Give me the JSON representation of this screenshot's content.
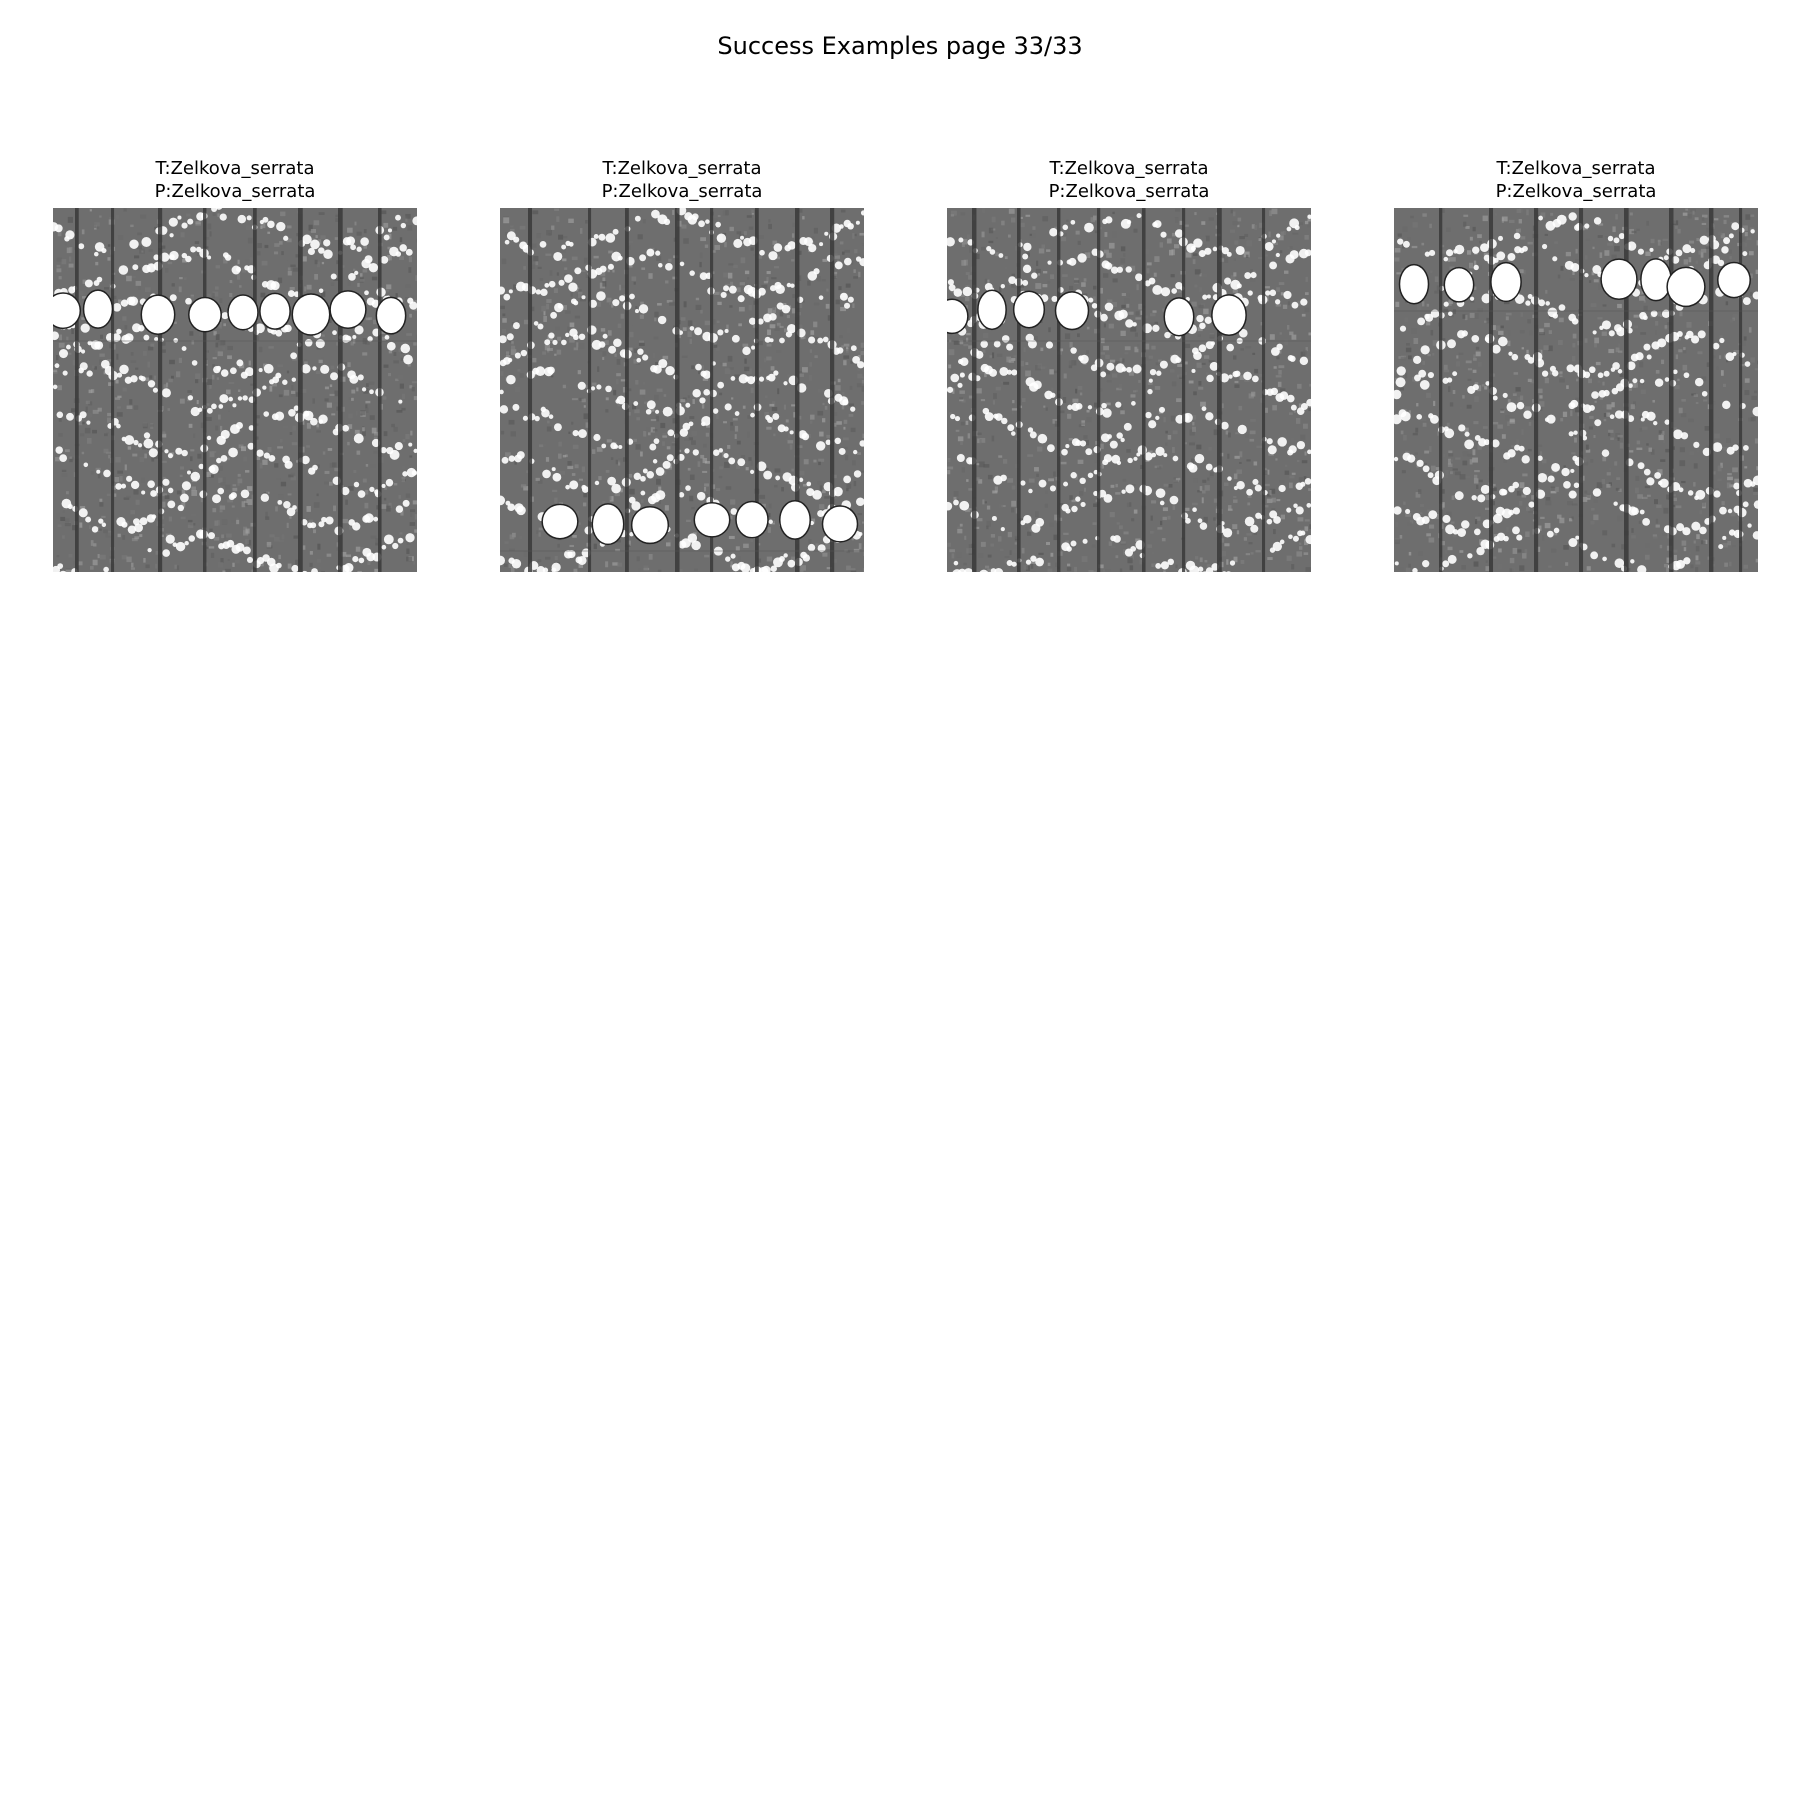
{
  "title": "Success Examples page 33/33",
  "panels": [
    {
      "true_label": "T:Zelkova_serrata",
      "pred_label": "P:Zelkova_serrata"
    },
    {
      "true_label": "T:Zelkova_serrata",
      "pred_label": "P:Zelkova_serrata"
    },
    {
      "true_label": "T:Zelkova_serrata",
      "pred_label": "P:Zelkova_serrata"
    },
    {
      "true_label": "T:Zelkova_serrata",
      "pred_label": "P:Zelkova_serrata"
    }
  ],
  "colors": {
    "tissue": "#6e6e6e",
    "ray": "#3a3a3a",
    "vessel": "#ffffff",
    "background": "#ffffff"
  }
}
